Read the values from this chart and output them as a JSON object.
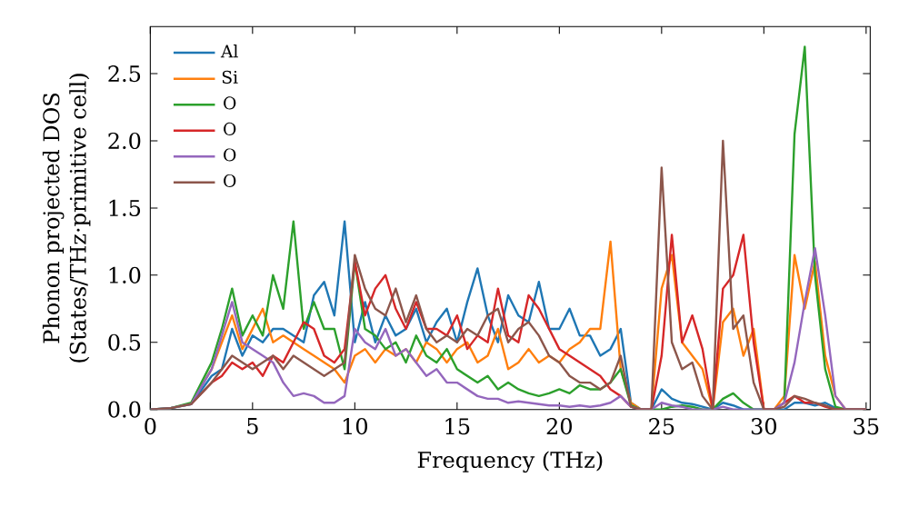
{
  "chart_data": {
    "type": "line",
    "xlabel": "Frequency (THz)",
    "ylabel": "Phonon projected DOS\n(States/THz·primitive cell)",
    "x": [
      0,
      1,
      2,
      3,
      3.5,
      4,
      4.5,
      5,
      5.5,
      6,
      6.5,
      7,
      7.5,
      8,
      8.5,
      9,
      9.5,
      10,
      10.5,
      11,
      11.5,
      12,
      12.5,
      13,
      13.5,
      14,
      14.5,
      15,
      15.5,
      16,
      16.5,
      17,
      17.5,
      18,
      18.5,
      19,
      19.5,
      20,
      20.5,
      21,
      21.5,
      22,
      22.5,
      23,
      23.5,
      24,
      24.5,
      25,
      25.5,
      26,
      26.5,
      27,
      27.5,
      28,
      28.5,
      29,
      29.5,
      30,
      30.5,
      31,
      31.5,
      32,
      32.5,
      33,
      33.5,
      34,
      35
    ],
    "series": [
      {
        "name": "Al",
        "color": "#1f77b4",
        "values": [
          0,
          0.01,
          0.04,
          0.25,
          0.3,
          0.6,
          0.4,
          0.55,
          0.5,
          0.6,
          0.6,
          0.55,
          0.5,
          0.85,
          0.95,
          0.7,
          1.4,
          0.5,
          0.8,
          0.5,
          0.7,
          0.55,
          0.6,
          0.75,
          0.5,
          0.65,
          0.75,
          0.5,
          0.8,
          1.05,
          0.7,
          0.5,
          0.85,
          0.7,
          0.65,
          0.95,
          0.6,
          0.6,
          0.75,
          0.55,
          0.55,
          0.4,
          0.45,
          0.6,
          0.05,
          0,
          0,
          0.15,
          0.08,
          0.05,
          0.04,
          0.02,
          0,
          0.05,
          0.03,
          0,
          0,
          0,
          0,
          0,
          0.05,
          0.05,
          0.03,
          0.05,
          0.01,
          0,
          0
        ]
      },
      {
        "name": "Si",
        "color": "#ff7f0e",
        "values": [
          null,
          null,
          0.05,
          0.3,
          0.5,
          0.7,
          0.45,
          0.6,
          0.75,
          0.5,
          0.55,
          0.5,
          0.45,
          0.4,
          0.35,
          0.3,
          0.2,
          0.4,
          0.45,
          0.35,
          0.45,
          0.4,
          0.45,
          0.35,
          0.5,
          0.45,
          0.35,
          0.45,
          0.5,
          0.35,
          0.4,
          0.6,
          0.3,
          0.35,
          0.45,
          0.35,
          0.4,
          0.35,
          0.45,
          0.5,
          0.6,
          0.6,
          1.25,
          0.3,
          0.05,
          0,
          0,
          0.9,
          1.15,
          0.5,
          0.4,
          0.3,
          0,
          0.65,
          0.75,
          0.4,
          0.6,
          0,
          0,
          0.1,
          1.15,
          0.75,
          1.1,
          0.4,
          0.1,
          0,
          0
        ]
      },
      {
        "name": "O",
        "color": "#2ca02c",
        "values": [
          0,
          0.01,
          0.05,
          0.35,
          0.6,
          0.9,
          0.55,
          0.7,
          0.55,
          1.0,
          0.75,
          1.4,
          0.6,
          0.8,
          0.6,
          0.6,
          0.3,
          1.1,
          0.6,
          0.55,
          0.45,
          0.5,
          0.35,
          0.55,
          0.4,
          0.35,
          0.45,
          0.3,
          0.25,
          0.2,
          0.25,
          0.15,
          0.2,
          0.15,
          0.12,
          0.1,
          0.12,
          0.15,
          0.12,
          0.18,
          0.15,
          0.15,
          0.2,
          0.3,
          0.03,
          0,
          0,
          0,
          0.02,
          0.03,
          0.02,
          0,
          0,
          0.08,
          0.12,
          0.05,
          0,
          0,
          0,
          0.05,
          2.05,
          2.7,
          1.0,
          0.3,
          0.02,
          0,
          0
        ]
      },
      {
        "name": "O",
        "color": "#d62728",
        "values": [
          null,
          null,
          0.04,
          0.2,
          0.25,
          0.35,
          0.3,
          0.35,
          0.25,
          0.4,
          0.35,
          0.5,
          0.65,
          0.6,
          0.4,
          0.35,
          0.45,
          1.1,
          0.7,
          0.9,
          1.0,
          0.75,
          0.6,
          0.8,
          0.6,
          0.6,
          0.55,
          0.7,
          0.45,
          0.55,
          0.5,
          0.9,
          0.55,
          0.5,
          0.85,
          0.75,
          0.6,
          0.45,
          0.4,
          0.35,
          0.3,
          0.25,
          0.15,
          0.1,
          0.02,
          0,
          0,
          0.4,
          1.3,
          0.5,
          0.7,
          0.45,
          0,
          0.9,
          1.0,
          1.3,
          0.5,
          0,
          0,
          0.05,
          0.1,
          0.05,
          0.05,
          0.02,
          0,
          0,
          0
        ]
      },
      {
        "name": "O",
        "color": "#9467bd",
        "values": [
          0,
          0.01,
          0.04,
          0.3,
          0.55,
          0.8,
          0.5,
          0.45,
          0.4,
          0.35,
          0.2,
          0.1,
          0.12,
          0.1,
          0.05,
          0.05,
          0.1,
          0.6,
          0.5,
          0.45,
          0.6,
          0.4,
          0.45,
          0.35,
          0.25,
          0.3,
          0.2,
          0.2,
          0.15,
          0.1,
          0.08,
          0.08,
          0.05,
          0.06,
          0.05,
          0.04,
          0.03,
          0.03,
          0.02,
          0.03,
          0.02,
          0.03,
          0.05,
          0.1,
          0.02,
          0,
          0,
          0.05,
          0.03,
          0.02,
          0,
          0,
          0,
          0.02,
          0,
          0,
          0,
          0,
          0,
          0.05,
          0.35,
          0.8,
          1.2,
          0.7,
          0.1,
          0,
          0
        ]
      },
      {
        "name": "O",
        "color": "#8c564b",
        "values": [
          0,
          0.01,
          0.04,
          0.2,
          0.3,
          0.4,
          0.35,
          0.3,
          0.35,
          0.4,
          0.3,
          0.4,
          0.35,
          0.3,
          0.25,
          0.3,
          0.35,
          1.15,
          0.9,
          0.75,
          0.7,
          0.9,
          0.65,
          0.85,
          0.6,
          0.5,
          0.55,
          0.5,
          0.6,
          0.55,
          0.7,
          0.75,
          0.5,
          0.6,
          0.65,
          0.55,
          0.4,
          0.35,
          0.25,
          0.2,
          0.2,
          0.15,
          0.2,
          0.4,
          0.02,
          0,
          0,
          1.8,
          0.5,
          0.3,
          0.35,
          0.1,
          0,
          2.0,
          0.6,
          0.7,
          0.2,
          0,
          0,
          0.02,
          0.1,
          0.08,
          0.05,
          0.03,
          0,
          0,
          0
        ]
      }
    ],
    "xlim": [
      0,
      35.2
    ],
    "ylim": [
      0,
      2.85
    ],
    "xticks": [
      0,
      5,
      10,
      15,
      20,
      25,
      30,
      35
    ],
    "yticks": [
      {
        "value": 0,
        "label": "0.0"
      },
      0.5,
      {
        "value": 1,
        "label": "1.0"
      },
      1.5,
      {
        "value": 2,
        "label": "2.0"
      },
      2.5
    ],
    "legend": "top left"
  }
}
